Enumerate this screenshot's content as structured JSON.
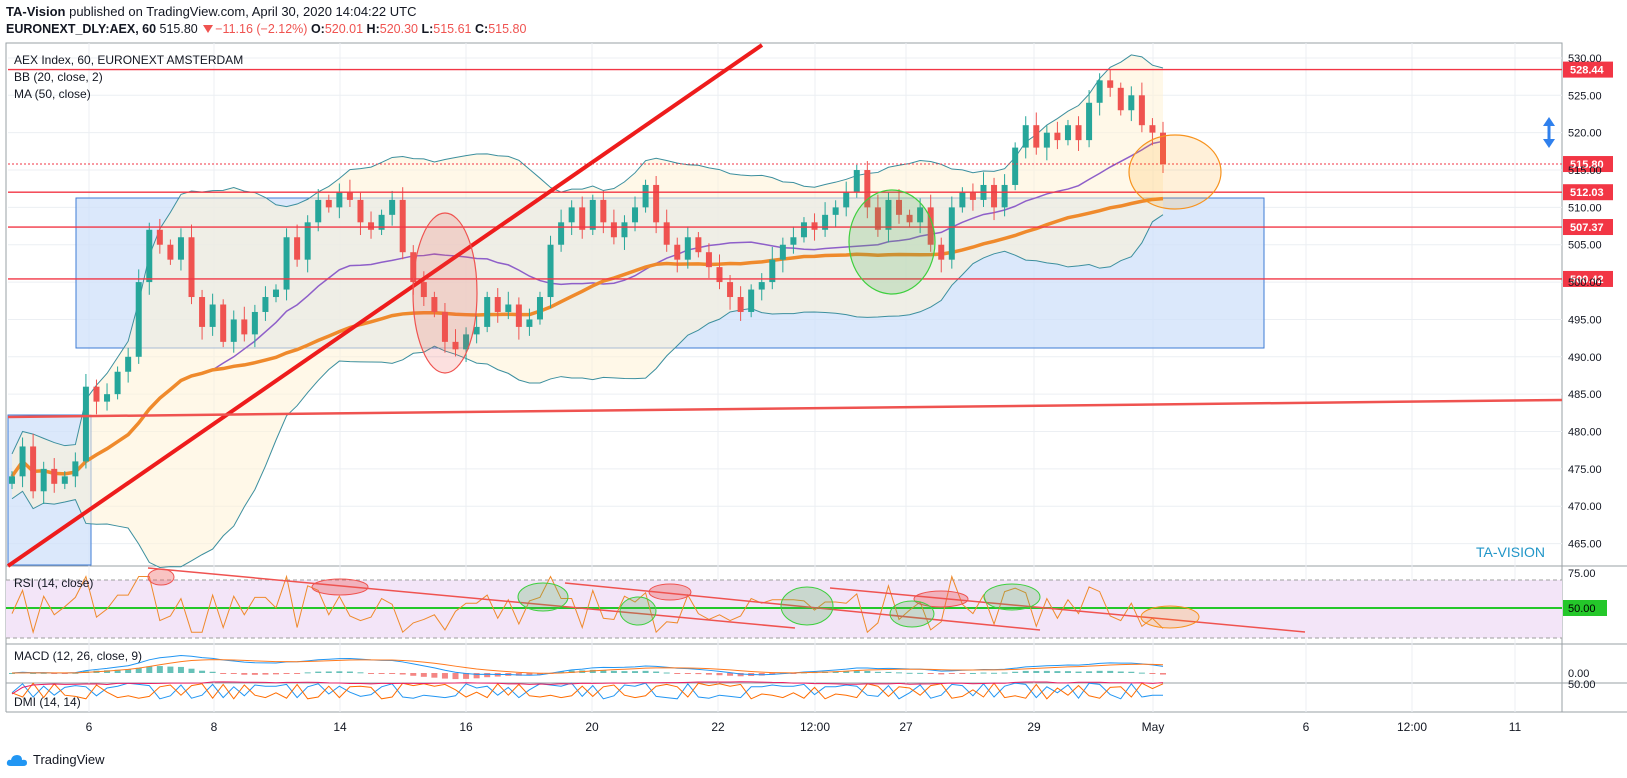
{
  "header": {
    "publisher": "TA-Vision",
    "published_text": "published on TradingView.com, April 30, 2020 14:04:22 UTC",
    "symbol": "EURONEXT_DLY:AEX, 60",
    "last": "515.80",
    "change": "−11.16 (−2.12%)",
    "o_label": "O:",
    "o": "520.01",
    "h_label": "H:",
    "h": "520.30",
    "l_label": "L:",
    "l": "515.61",
    "c_label": "C:",
    "c": "515.80"
  },
  "footer": {
    "brand": "TradingView"
  },
  "colors": {
    "up": "#26a69a",
    "down": "#ef5350",
    "ma": "#ef8a2c",
    "bb_mid": "#8e5fc9",
    "bb_band": "#3c8f9e",
    "level": "#f23645",
    "box": "#cfe0fa",
    "rsi_bg": "#f3e5f8",
    "rsi_mid": "#24c72a",
    "macd": "#2196f3",
    "signal": "#ff7a1f"
  },
  "chart_data": [
    {
      "type": "candlestick",
      "title": "AEX Index, 60, EURONEXT AMSTERDAM",
      "indicators": [
        "BB (20, close, 2)",
        "MA (50, close)"
      ],
      "ylim": [
        462,
        532
      ],
      "y_ticks": [
        465.0,
        470.0,
        475.0,
        480.0,
        485.0,
        490.0,
        495.0,
        500.0,
        505.0,
        510.0,
        515.0,
        520.0,
        525.0,
        530.0
      ],
      "x_ticks": [
        "6",
        "8",
        "14",
        "16",
        "20",
        "22",
        "12:00",
        "27",
        "29",
        "May",
        "6",
        "12:00",
        "11"
      ],
      "price_labels": [
        {
          "value": 528.44,
          "text": "528.44"
        },
        {
          "value": 515.8,
          "text": "515.80"
        },
        {
          "value": 512.03,
          "text": "512.03"
        },
        {
          "value": 507.37,
          "text": "507.37"
        },
        {
          "value": 500.42,
          "text": "500.42"
        }
      ],
      "horizontal_levels": [
        528.44,
        512.03,
        507.37,
        500.42
      ],
      "current_price": 515.8,
      "close_series": [
        474,
        478,
        472,
        475,
        473,
        474,
        476,
        486,
        484,
        485,
        488,
        490,
        500,
        507,
        505,
        503,
        506,
        498,
        494,
        497,
        492,
        495,
        493,
        496,
        498,
        499,
        506,
        503,
        508,
        511,
        510,
        512,
        511,
        508,
        507,
        509,
        511,
        504,
        500,
        498,
        496,
        492,
        491,
        493,
        494,
        498,
        496,
        497,
        494,
        495,
        498,
        505,
        508,
        510,
        507,
        511,
        508,
        506,
        508,
        510,
        513,
        508,
        505,
        503,
        506,
        504,
        502,
        500,
        498,
        496,
        499,
        500,
        503,
        505,
        506,
        508,
        507,
        509,
        510,
        512,
        515,
        510,
        507,
        511,
        509,
        508,
        510,
        505,
        503,
        510,
        512,
        511,
        513,
        510,
        513,
        518,
        521,
        518,
        520,
        519,
        521,
        519,
        524,
        527,
        526,
        523,
        525,
        521,
        520,
        515.8
      ],
      "watermark": "TA-VISION"
    },
    {
      "type": "line",
      "title": "RSI (14, close)",
      "ylim": [
        0,
        100
      ],
      "y_ticks": [
        75.0,
        50.0
      ],
      "reference_level": 50.0,
      "reference_text": "50.00"
    },
    {
      "type": "line",
      "title": "MACD (12, 26, close, 9)",
      "y_ticks": [
        0.0
      ],
      "series": [
        {
          "name": "MACD"
        },
        {
          "name": "Signal"
        }
      ]
    },
    {
      "type": "line",
      "title": "DMI (14, 14)",
      "y_ticks": [
        50.0
      ]
    }
  ]
}
